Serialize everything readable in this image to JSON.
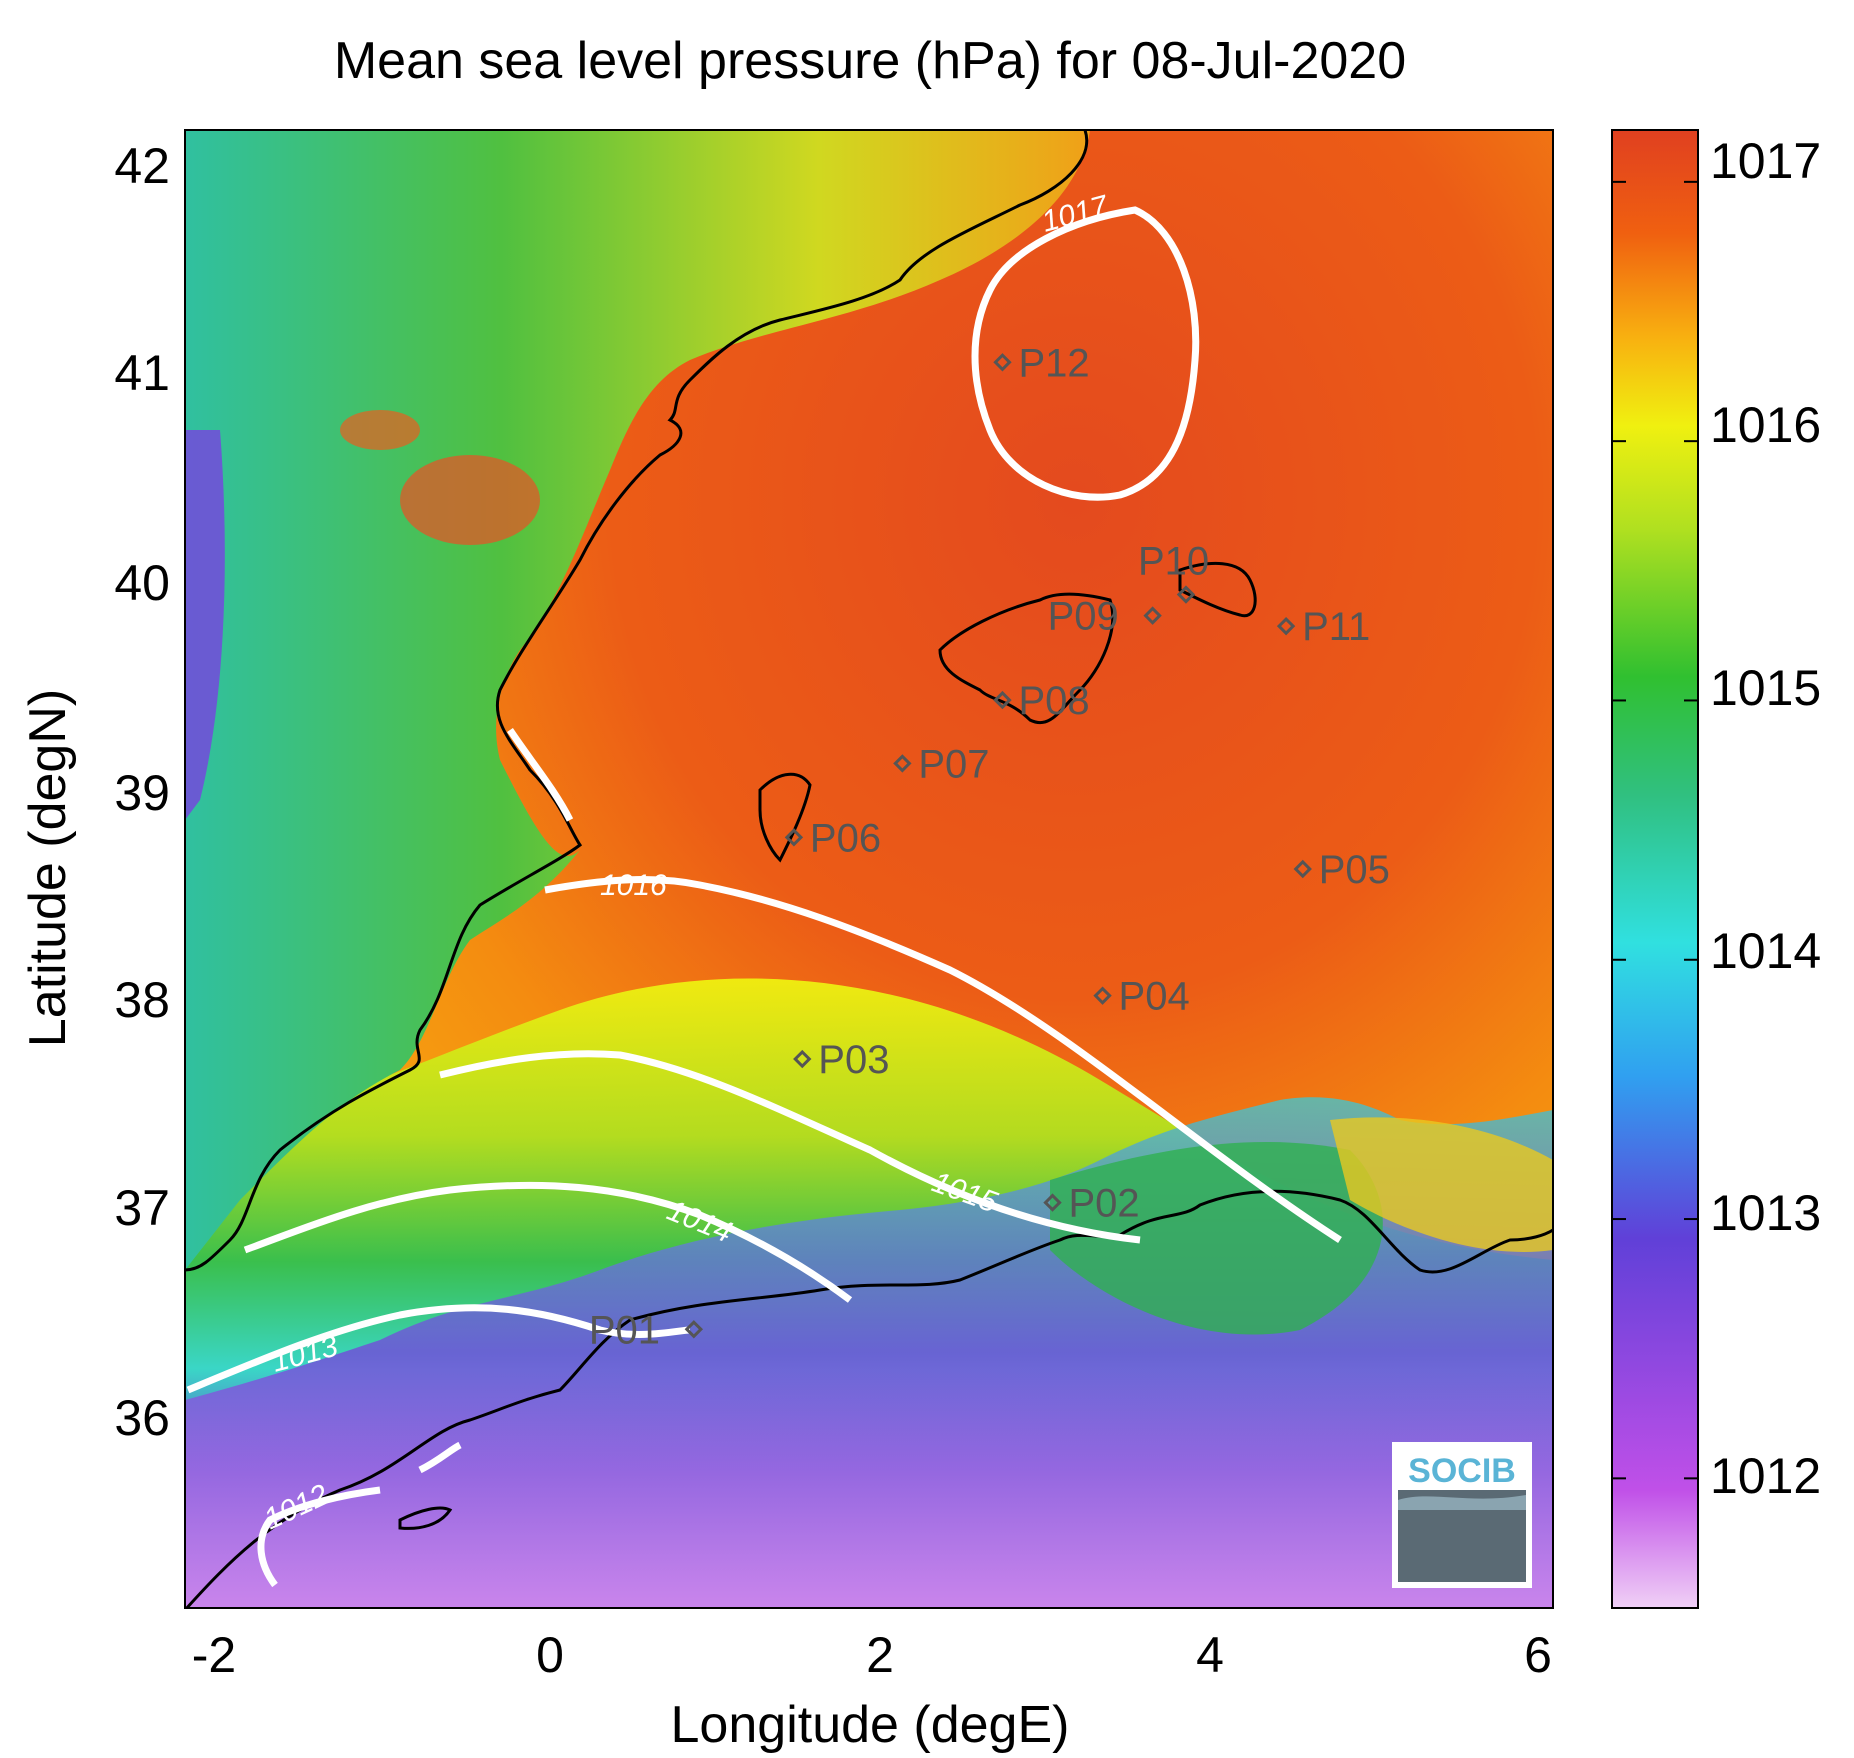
{
  "title": "Mean sea level pressure (hPa) for 08-Jul-2020",
  "xlabel": "Longitude (degE)",
  "ylabel": "Latitude (degN)",
  "x_ticks": [
    "-2",
    "0",
    "2",
    "4",
    "6"
  ],
  "y_ticks": [
    "42",
    "41",
    "40",
    "39",
    "38",
    "37",
    "36"
  ],
  "colorbar": {
    "ticks": [
      "1017",
      "1016",
      "1015",
      "1014",
      "1013",
      "1012"
    ],
    "range": [
      1011.5,
      1017.2
    ]
  },
  "contour_labels": [
    "1017",
    "1016",
    "1015",
    "1014",
    "1013",
    "1012"
  ],
  "points": [
    {
      "name": "P01",
      "lon": 0.85,
      "lat": 36.52
    },
    {
      "name": "P02",
      "lon": 3.0,
      "lat": 37.12
    },
    {
      "name": "P03",
      "lon": 1.5,
      "lat": 37.8
    },
    {
      "name": "P04",
      "lon": 3.3,
      "lat": 38.1
    },
    {
      "name": "P05",
      "lon": 4.5,
      "lat": 38.7
    },
    {
      "name": "P06",
      "lon": 1.45,
      "lat": 38.85
    },
    {
      "name": "P07",
      "lon": 2.1,
      "lat": 39.2
    },
    {
      "name": "P08",
      "lon": 2.7,
      "lat": 39.5
    },
    {
      "name": "P09",
      "lon": 3.6,
      "lat": 39.9
    },
    {
      "name": "P10",
      "lon": 3.8,
      "lat": 40.0
    },
    {
      "name": "P11",
      "lon": 4.4,
      "lat": 39.85
    },
    {
      "name": "P12",
      "lon": 2.7,
      "lat": 41.1
    }
  ],
  "logo": "SOCIB",
  "colors": {
    "contour": "#ffffff",
    "coast": "#000000",
    "marker": "#555555"
  }
}
